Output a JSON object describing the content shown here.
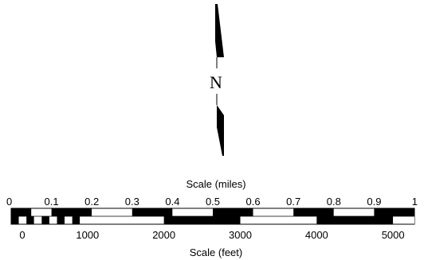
{
  "north_arrow": {
    "label": "N",
    "icon": "north-arrow-icon"
  },
  "scale_bar": {
    "miles": {
      "title": "Scale (miles)",
      "tick_labels": [
        "0",
        "0.1",
        "0.2",
        "0.3",
        "0.4",
        "0.5",
        "0.6",
        "0.7",
        "0.8",
        "0.9",
        "1"
      ],
      "max": 1
    },
    "feet": {
      "title": "Scale (feet)",
      "tick_labels": [
        "0",
        "1000",
        "2000",
        "3000",
        "4000",
        "5000"
      ],
      "max": 5280
    },
    "colors": {
      "dark": "#000000",
      "light": "#ffffff"
    }
  }
}
